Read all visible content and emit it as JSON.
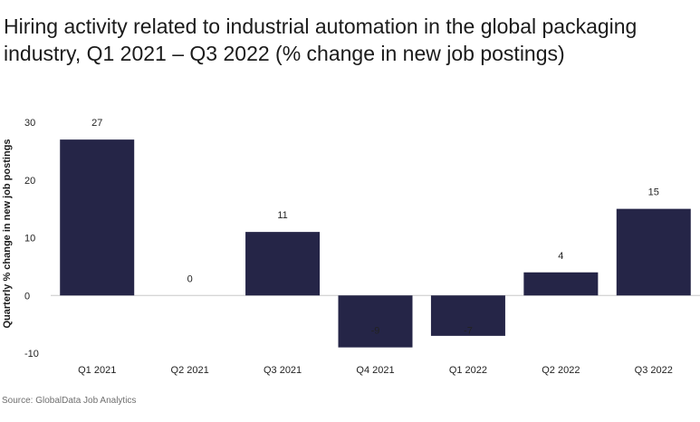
{
  "title": "Hiring activity related to industrial automation in the global packaging industry, Q1 2021 – Q3 2022 (% change in new job postings)",
  "source": "Source: GlobalData Job Analytics",
  "colors": {
    "bar": "#252547",
    "axis": "#c8c8c8",
    "text": "#1b1b1b"
  },
  "chart_data": {
    "type": "bar",
    "title": "Hiring activity related to industrial automation in the global packaging industry, Q1 2021 – Q3 2022 (% change in new job postings)",
    "ylabel": "Quarterly % change in new job postings",
    "xlabel": "",
    "categories": [
      "Q1 2021",
      "Q2 2021",
      "Q3 2021",
      "Q4 2021",
      "Q1 2022",
      "Q2 2022",
      "Q3 2022"
    ],
    "values": [
      27,
      0,
      11,
      -9,
      -7,
      4,
      15
    ],
    "data_labels": [
      "27",
      "0",
      "11",
      "-9",
      "-7",
      "4",
      "15"
    ],
    "ylim": [
      -10,
      30
    ],
    "yticks": [
      30,
      20,
      10,
      0,
      -10
    ],
    "grid": false,
    "legend": "none"
  }
}
